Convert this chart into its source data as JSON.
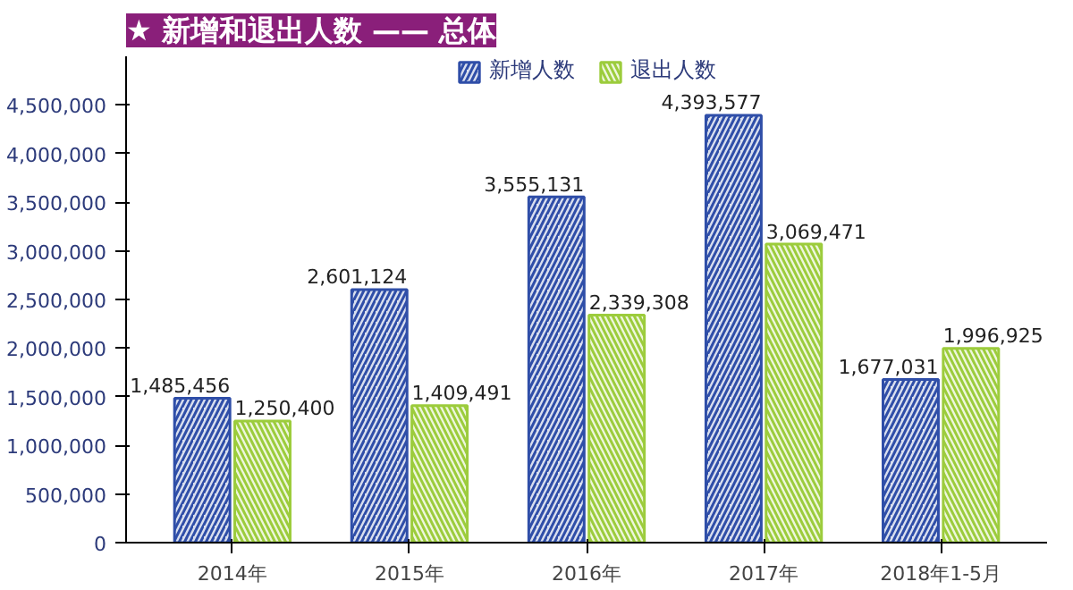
{
  "chart_data": {
    "type": "bar",
    "title": "★ 新增和退出人数 —— 总体",
    "categories": [
      "2014年",
      "2015年",
      "2016年",
      "2017年",
      "2018年1-5月"
    ],
    "series": [
      {
        "name": "新增人数",
        "color": "#2f4ea8",
        "values": [
          1485456,
          2601124,
          3555131,
          4393577,
          1677031
        ],
        "value_labels": [
          "1,485,456",
          "2,601,124",
          "3,555,131",
          "4,393,577",
          "1,677,031"
        ]
      },
      {
        "name": "退出人数",
        "color": "#9ccc3c",
        "values": [
          1250400,
          1409491,
          2339308,
          3069471,
          1996925
        ],
        "value_labels": [
          "1,250,400",
          "1,409,491",
          "2,339,308",
          "3,069,471",
          "1,996,925"
        ]
      }
    ],
    "ylim": [
      0,
      5000000
    ],
    "yticks": [
      {
        "value": 0,
        "label": "0"
      },
      {
        "value": 500000,
        "label": "500,000"
      },
      {
        "value": 1000000,
        "label": "1,000,000"
      },
      {
        "value": 1500000,
        "label": "1,500,000"
      },
      {
        "value": 2000000,
        "label": "2,000,000"
      },
      {
        "value": 2500000,
        "label": "2,500,000"
      },
      {
        "value": 3000000,
        "label": "3,000,000"
      },
      {
        "value": 3500000,
        "label": "3,500,000"
      },
      {
        "value": 4000000,
        "label": "4,000,000"
      },
      {
        "value": 4500000,
        "label": "4,500,000"
      }
    ],
    "legend": "top",
    "grid": false
  }
}
